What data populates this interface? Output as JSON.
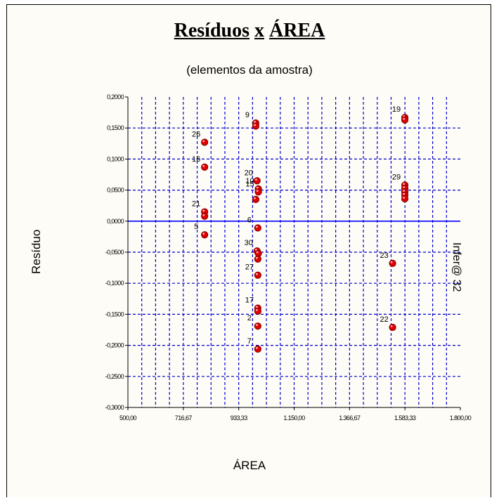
{
  "title_word1": "Resíduos",
  "title_sep": "x",
  "title_word2": "ÁREA",
  "subtitle": "(elementos da amostra)",
  "watermark": "Infer@ 32",
  "colors": {
    "grid": "#0000cc",
    "zero_line": "#0000ff",
    "point": "#e00000",
    "point_stroke": "#7a0000",
    "background": "#fefcf6"
  },
  "chart_data": {
    "type": "scatter",
    "title": "Resíduos x ÁREA",
    "subtitle": "(elementos da amostra)",
    "xlabel": "ÁREA",
    "ylabel": "Resíduo",
    "xlim": [
      500,
      1800
    ],
    "ylim": [
      -0.3,
      0.2
    ],
    "grid": true,
    "x_ticks": [
      "500,00",
      "716,67",
      "933,33",
      "1.150,00",
      "1.366,67",
      "1.583,33",
      "1.800,00"
    ],
    "y_ticks": [
      "0,2000",
      "0,1500",
      "0,1000",
      "0,0500",
      "0,0000",
      "-0,0500",
      "-0,1000",
      "-0,1500",
      "-0,2000",
      "-0,2500",
      "-0,3000"
    ],
    "x_grid_step": 108.333,
    "y_grid_step": 0.05,
    "zero_line": 0,
    "points": [
      {
        "x": 800,
        "y": 0.127,
        "label": "26"
      },
      {
        "x": 800,
        "y": 0.087,
        "label": "16"
      },
      {
        "x": 800,
        "y": 0.015,
        "label": "21"
      },
      {
        "x": 800,
        "y": 0.008,
        "label": ""
      },
      {
        "x": 800,
        "y": -0.022,
        "label": "5"
      },
      {
        "x": 1000,
        "y": 0.158,
        "label": "9"
      },
      {
        "x": 1000,
        "y": 0.153,
        "label": ""
      },
      {
        "x": 1005,
        "y": 0.065,
        "label": "20"
      },
      {
        "x": 1010,
        "y": 0.052,
        "label": "10"
      },
      {
        "x": 1010,
        "y": 0.047,
        "label": "15"
      },
      {
        "x": 1000,
        "y": 0.035,
        "label": ""
      },
      {
        "x": 1008,
        "y": -0.011,
        "label": "6"
      },
      {
        "x": 1005,
        "y": -0.048,
        "label": "30"
      },
      {
        "x": 1010,
        "y": -0.052,
        "label": ""
      },
      {
        "x": 1008,
        "y": -0.061,
        "label": ""
      },
      {
        "x": 1008,
        "y": -0.087,
        "label": "27"
      },
      {
        "x": 1008,
        "y": -0.14,
        "label": "17"
      },
      {
        "x": 1008,
        "y": -0.145,
        "label": ""
      },
      {
        "x": 1008,
        "y": -0.169,
        "label": "2"
      },
      {
        "x": 1008,
        "y": -0.206,
        "label": "7"
      },
      {
        "x": 1583,
        "y": 0.167,
        "label": "19"
      },
      {
        "x": 1583,
        "y": 0.163,
        "label": ""
      },
      {
        "x": 1583,
        "y": 0.058,
        "label": "29"
      },
      {
        "x": 1583,
        "y": 0.053,
        "label": ""
      },
      {
        "x": 1583,
        "y": 0.047,
        "label": ""
      },
      {
        "x": 1583,
        "y": 0.042,
        "label": ""
      },
      {
        "x": 1583,
        "y": 0.036,
        "label": ""
      },
      {
        "x": 1535,
        "y": -0.068,
        "label": "23"
      },
      {
        "x": 1535,
        "y": -0.171,
        "label": "22"
      }
    ]
  }
}
